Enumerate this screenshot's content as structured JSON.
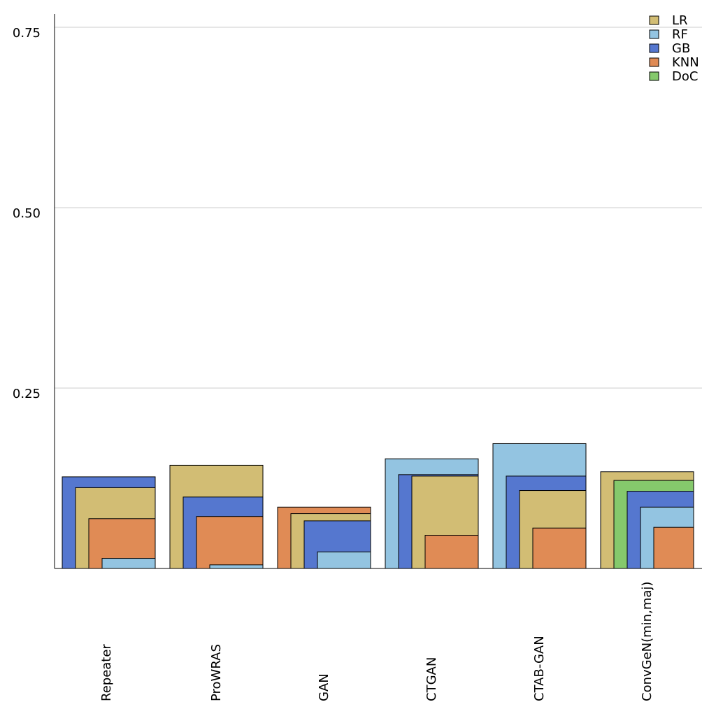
{
  "chart_data": {
    "type": "bar",
    "title": "",
    "xlabel": "",
    "ylabel": "",
    "ylim": [
      0,
      0.75
    ],
    "yticks": [
      "0.25",
      "0.50",
      "0.75"
    ],
    "ytick_values": [
      0.25,
      0.5,
      0.75
    ],
    "grid": true,
    "legend_position": "top-right",
    "categories": [
      "Repeater",
      "ProWRAS",
      "GAN",
      "CTGAN",
      "CTAB-GAN",
      "ConvGeN(min,maj)"
    ],
    "series": [
      {
        "name": "LR",
        "color": "#d2bd74",
        "values": [
          0.112,
          0.143,
          0.076,
          0.128,
          0.108,
          0.134
        ]
      },
      {
        "name": "RF",
        "color": "#93c4e1",
        "values": [
          0.014,
          0.005,
          0.023,
          0.152,
          0.173,
          0.085
        ]
      },
      {
        "name": "GB",
        "color": "#5577cf",
        "values": [
          0.127,
          0.099,
          0.066,
          0.13,
          0.128,
          0.107
        ]
      },
      {
        "name": "KNN",
        "color": "#e08b55",
        "values": [
          0.069,
          0.072,
          0.085,
          0.046,
          0.056,
          0.057
        ]
      },
      {
        "name": "DoC",
        "color": "#85c96c",
        "values": [
          0.0,
          0.0,
          0.0,
          0.0,
          0.0,
          0.122
        ]
      }
    ]
  }
}
